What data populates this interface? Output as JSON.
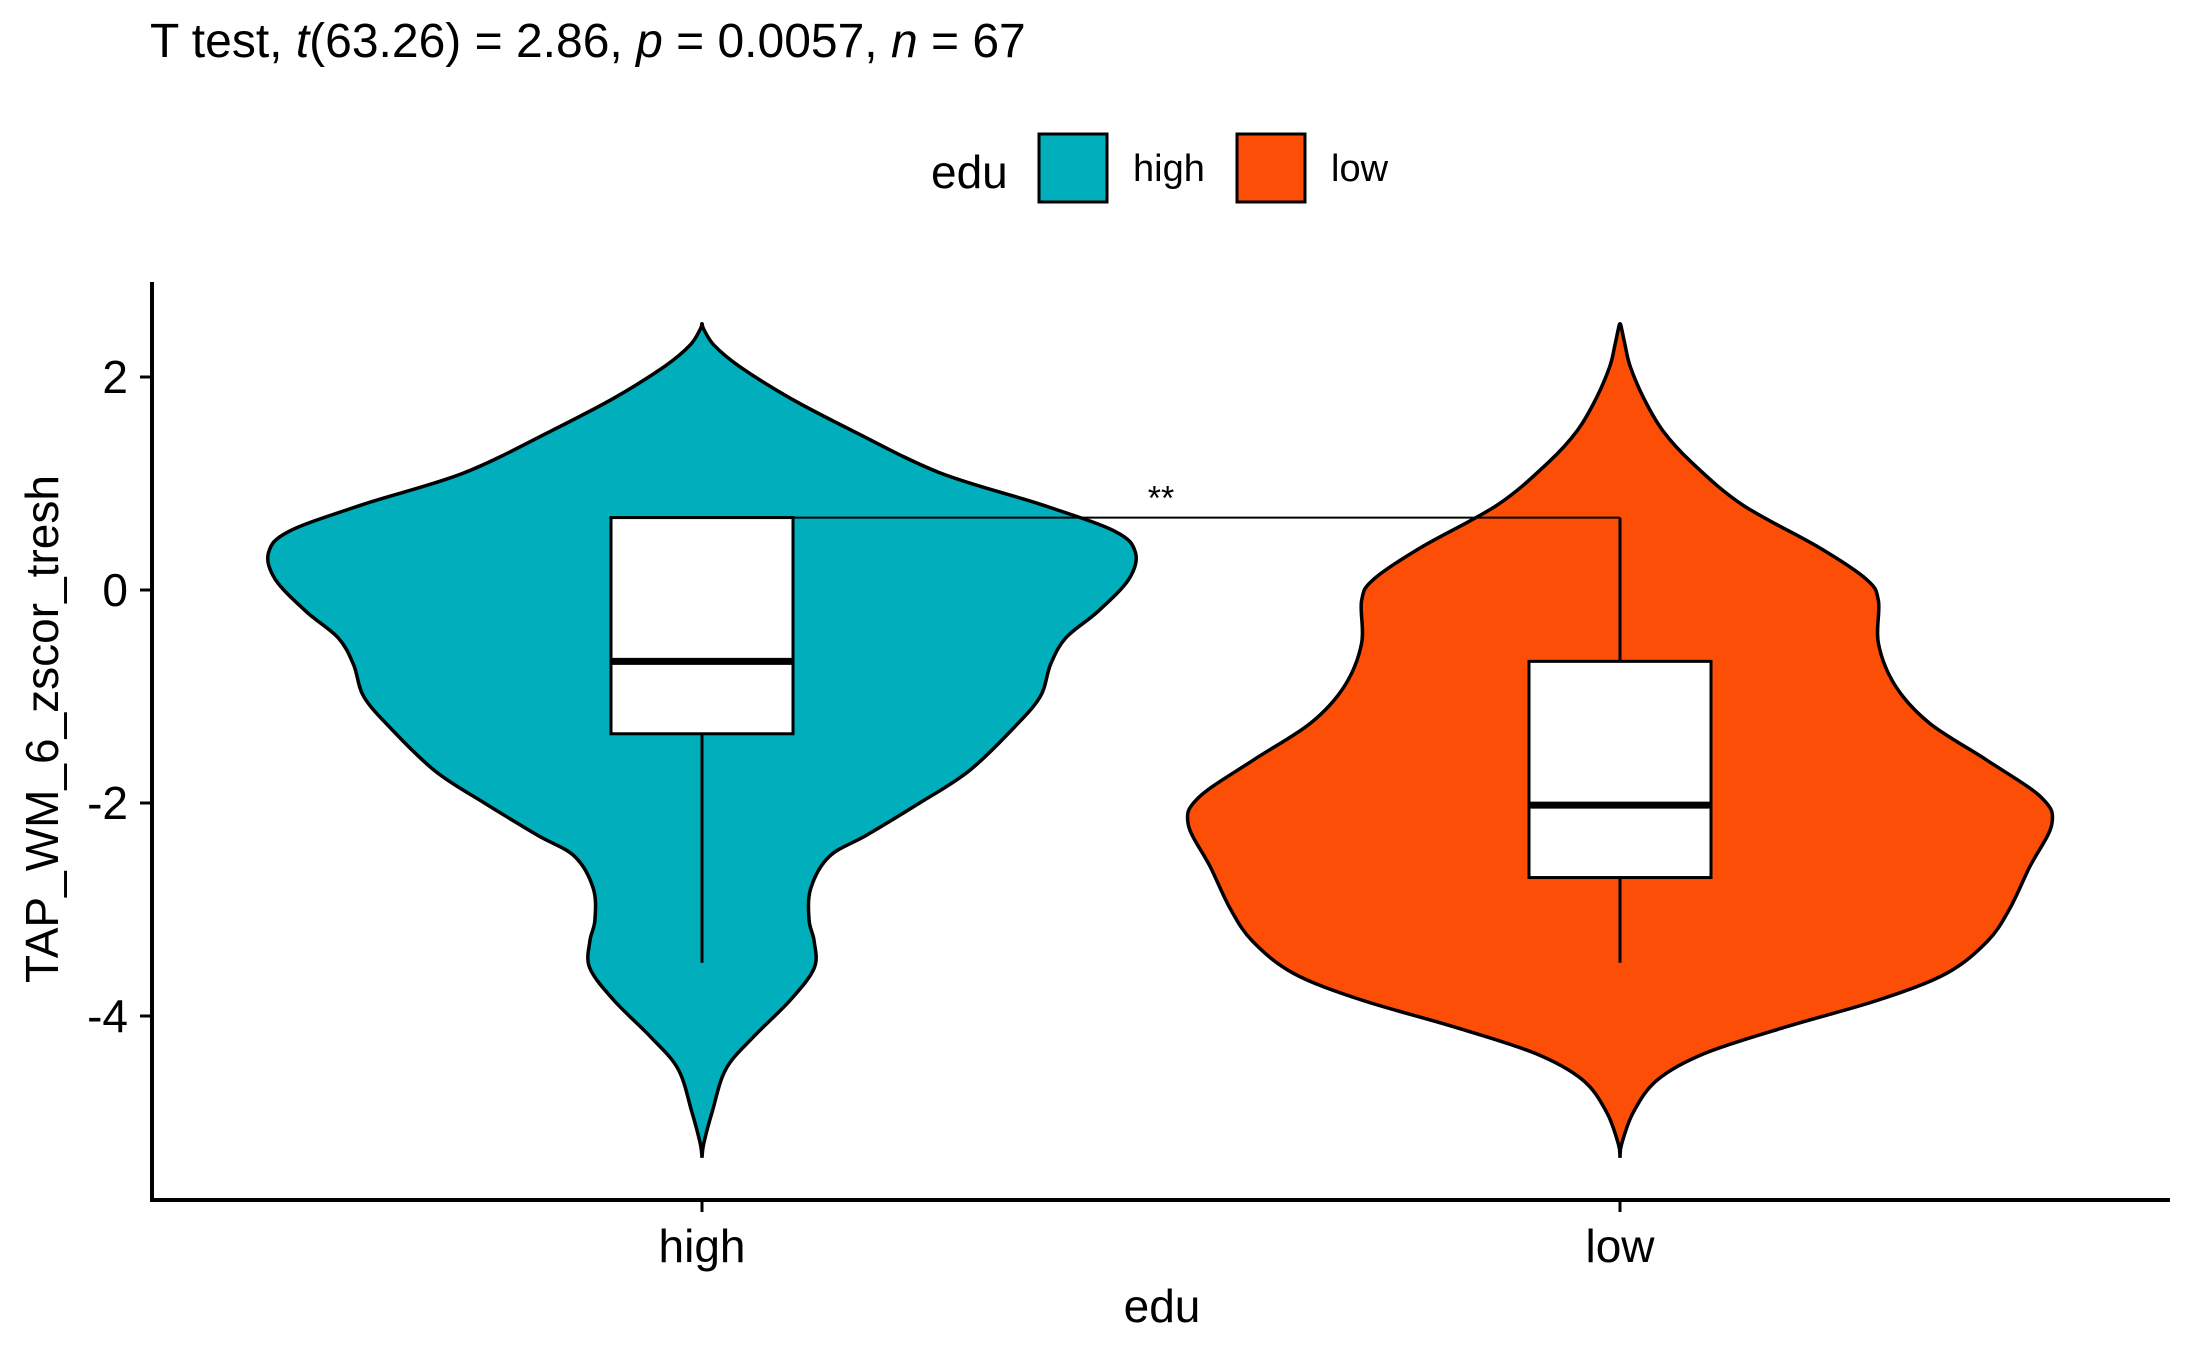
{
  "chart_data": {
    "type": "violin",
    "title": {
      "prefix": "T test, ",
      "t_symbol": "t",
      "df_text": "(63.26) = 2.86, ",
      "p_symbol": "p",
      "p_text": " = 0.0057, ",
      "n_symbol": "n",
      "n_text": " = 67"
    },
    "xlabel": "edu",
    "ylabel": "TAP_WM_6_zscor_tresh",
    "ylim": [
      -5.7,
      2.9
    ],
    "yticks": [
      2,
      0,
      -2,
      -4
    ],
    "ytick_labels": [
      "2",
      "0",
      "-2",
      "-4"
    ],
    "categories": [
      "high",
      "low"
    ],
    "legend": {
      "title": "edu",
      "position": "top",
      "items": [
        {
          "label": "high",
          "color": "#00AFBB"
        },
        {
          "label": "low",
          "color": "#FC4E07"
        }
      ]
    },
    "groups": [
      {
        "name": "high",
        "color": "#00AFBB",
        "box": {
          "lower_whisker": -3.5,
          "q1": -1.35,
          "median": -0.67,
          "q3": 0.68,
          "upper_whisker": 0.68
        },
        "density_profile": [
          [
            -5.33,
            0.0
          ],
          [
            -5.2,
            0.01
          ],
          [
            -4.9,
            0.06
          ],
          [
            -4.5,
            0.14
          ],
          [
            -4.2,
            0.3
          ],
          [
            -3.85,
            0.52
          ],
          [
            -3.55,
            0.66
          ],
          [
            -3.3,
            0.66
          ],
          [
            -3.1,
            0.63
          ],
          [
            -2.8,
            0.64
          ],
          [
            -2.5,
            0.75
          ],
          [
            -2.3,
            0.97
          ],
          [
            -2.0,
            1.28
          ],
          [
            -1.7,
            1.57
          ],
          [
            -1.3,
            1.83
          ],
          [
            -1.0,
            1.99
          ],
          [
            -0.7,
            2.05
          ],
          [
            -0.45,
            2.14
          ],
          [
            -0.2,
            2.33
          ],
          [
            0.1,
            2.51
          ],
          [
            0.35,
            2.55
          ],
          [
            0.55,
            2.43
          ],
          [
            0.8,
            2.0
          ],
          [
            1.1,
            1.4
          ],
          [
            1.5,
            0.88
          ],
          [
            1.8,
            0.52
          ],
          [
            2.1,
            0.22
          ],
          [
            2.3,
            0.07
          ],
          [
            2.45,
            0.01
          ],
          [
            2.5,
            0.0
          ]
        ]
      },
      {
        "name": "low",
        "color": "#FC4E07",
        "box": {
          "lower_whisker": -3.5,
          "q1": -2.7,
          "median": -2.02,
          "q3": -0.67,
          "upper_whisker": 0.68
        },
        "density_profile": [
          [
            -5.33,
            0.0
          ],
          [
            -5.2,
            0.01
          ],
          [
            -4.9,
            0.08
          ],
          [
            -4.6,
            0.22
          ],
          [
            -4.35,
            0.5
          ],
          [
            -4.1,
            0.98
          ],
          [
            -3.85,
            1.52
          ],
          [
            -3.6,
            1.92
          ],
          [
            -3.3,
            2.16
          ],
          [
            -3.0,
            2.29
          ],
          [
            -2.6,
            2.41
          ],
          [
            -2.2,
            2.54
          ],
          [
            -1.95,
            2.48
          ],
          [
            -1.6,
            2.16
          ],
          [
            -1.25,
            1.82
          ],
          [
            -0.9,
            1.62
          ],
          [
            -0.5,
            1.52
          ],
          [
            -0.1,
            1.52
          ],
          [
            0.1,
            1.45
          ],
          [
            0.4,
            1.17
          ],
          [
            0.8,
            0.72
          ],
          [
            1.2,
            0.42
          ],
          [
            1.5,
            0.25
          ],
          [
            1.8,
            0.14
          ],
          [
            2.1,
            0.06
          ],
          [
            2.3,
            0.03
          ],
          [
            2.45,
            0.01
          ],
          [
            2.5,
            0.0
          ]
        ]
      }
    ],
    "comparison": {
      "label": "**",
      "from": "high",
      "to": "low",
      "y": 0.68
    }
  }
}
